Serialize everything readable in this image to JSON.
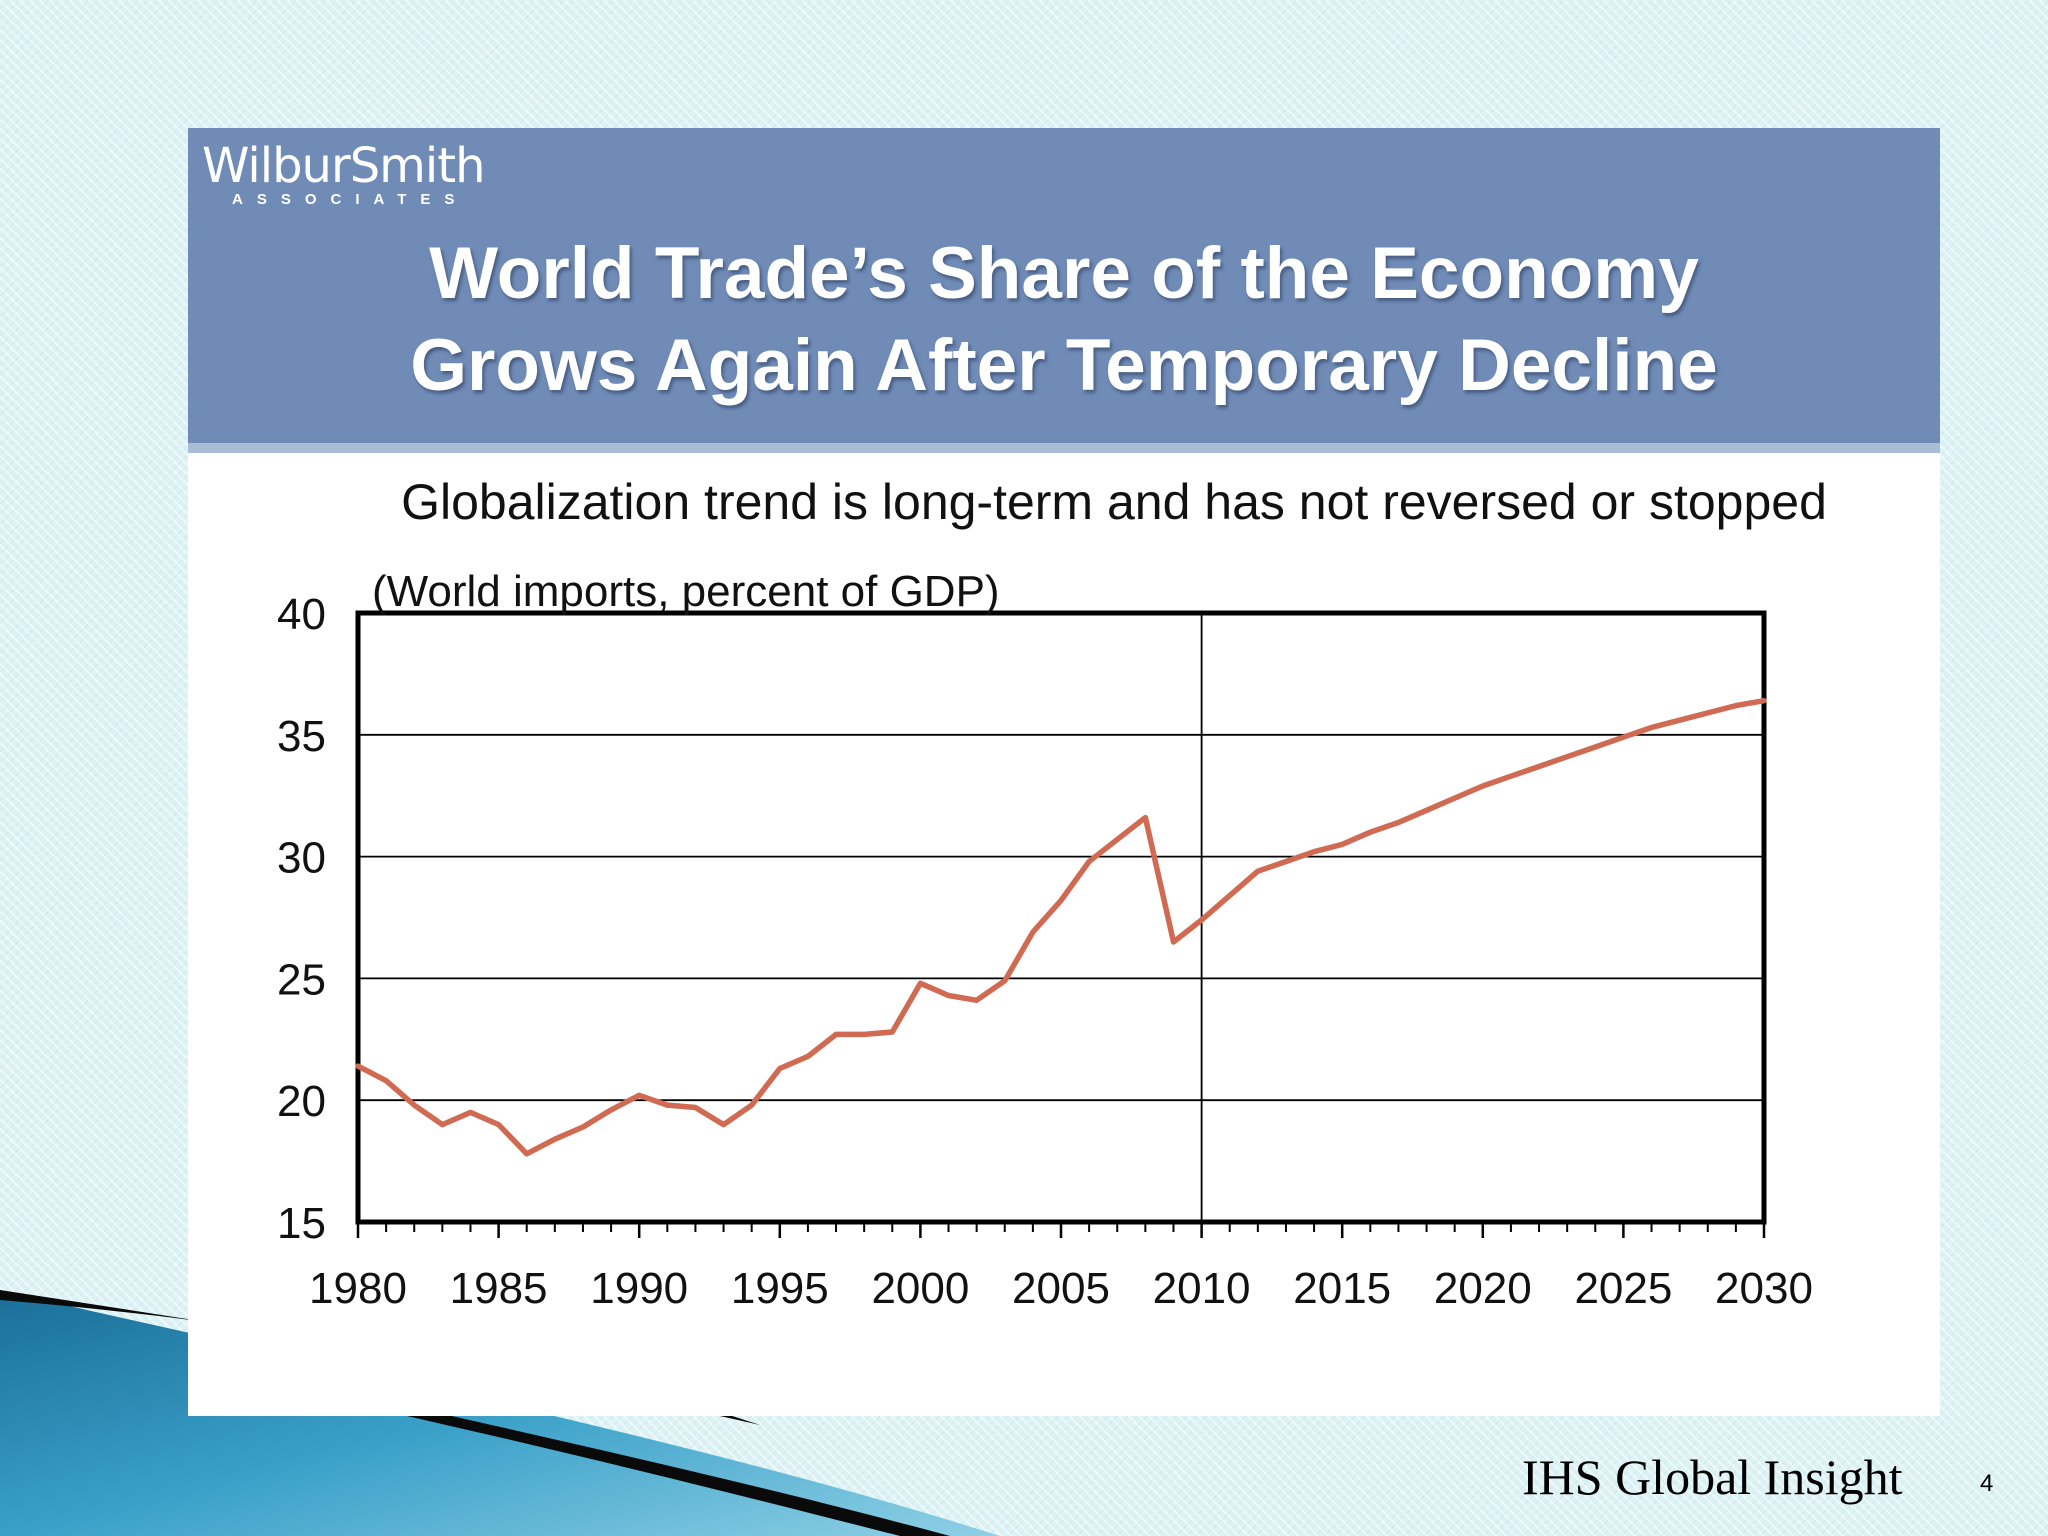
{
  "logo": {
    "name": "WilburSmith",
    "sub": "ASSOCIATES"
  },
  "slide": {
    "title_lines": [
      "World Trade’s Share of the Economy",
      "Grows Again After Temporary Decline"
    ],
    "subtitle": "Globalization trend is long-term and has not reversed or stopped"
  },
  "footer": {
    "source": "IHS Global Insight",
    "page_number": "4"
  },
  "colors": {
    "header": "#6f8bb6",
    "series": "#d06a52",
    "background": "#dcf2f5"
  },
  "chart_data": {
    "type": "line",
    "title": "(World imports, percent of GDP)",
    "xlabel": "",
    "ylabel": "",
    "xlim": [
      1980,
      2030
    ],
    "ylim": [
      15,
      40
    ],
    "x_ticks": [
      "1980",
      "1985",
      "1990",
      "1995",
      "2000",
      "2005",
      "2010",
      "2015",
      "2020",
      "2025",
      "2030"
    ],
    "y_ticks": [
      "15",
      "20",
      "25",
      "30",
      "35",
      "40"
    ],
    "grid": {
      "horizontal": [
        20,
        25,
        30,
        35
      ],
      "vertical": [
        2010
      ]
    },
    "legend": "none",
    "series": [
      {
        "x": [
          1980,
          1981,
          1982,
          1983,
          1984,
          1985,
          1986,
          1987,
          1988,
          1989,
          1990,
          1991,
          1992,
          1993,
          1994,
          1995,
          1996,
          1997,
          1998,
          1999,
          2000,
          2001,
          2002,
          2003,
          2004,
          2005,
          2006,
          2007,
          2008,
          2009,
          2010,
          2011,
          2012,
          2013,
          2014,
          2015,
          2016,
          2017,
          2018,
          2019,
          2020,
          2021,
          2022,
          2023,
          2024,
          2025,
          2026,
          2027,
          2028,
          2029,
          2030
        ],
        "values": [
          21.4,
          20.8,
          19.8,
          19.0,
          19.5,
          19.0,
          17.8,
          18.4,
          18.9,
          19.6,
          20.2,
          19.8,
          19.7,
          19.0,
          19.8,
          21.3,
          21.8,
          22.7,
          22.7,
          22.8,
          24.8,
          24.3,
          24.1,
          24.9,
          26.9,
          28.2,
          29.8,
          30.7,
          31.6,
          26.5,
          27.4,
          28.4,
          29.4,
          29.8,
          30.2,
          30.5,
          31.0,
          31.4,
          31.9,
          32.4,
          32.9,
          33.3,
          33.7,
          34.1,
          34.5,
          34.9,
          35.3,
          35.6,
          35.9,
          36.2,
          36.4
        ]
      }
    ]
  }
}
